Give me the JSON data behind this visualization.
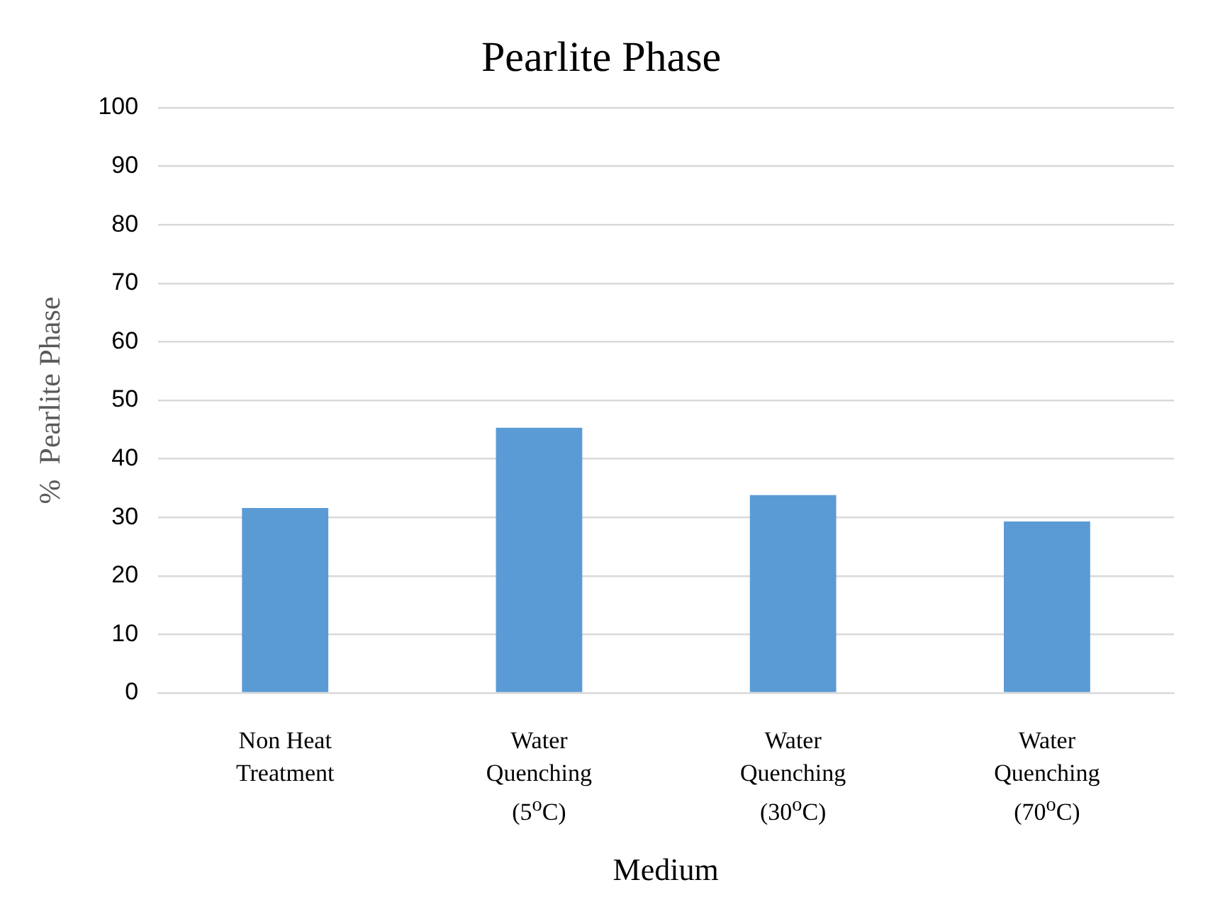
{
  "chart_data": {
    "type": "bar",
    "title": "Pearlite Phase",
    "xlabel": "Medium",
    "ylabel": "%  Pearlite Phase",
    "categories": [
      "Non Heat Treatment",
      "Water Quenching (5$^{o}$C)",
      "Water Quenching (30$^{o}$C)",
      "Water Quenching (70$^{o}$C)"
    ],
    "values": [
      31.6,
      45.3,
      33.8,
      29.3
    ],
    "color": "#5b9bd5",
    "ylim": [
      0,
      100
    ],
    "yticks": [
      0,
      10,
      20,
      30,
      40,
      50,
      60,
      70,
      80,
      90,
      100
    ],
    "grid": "y",
    "legend": false
  }
}
